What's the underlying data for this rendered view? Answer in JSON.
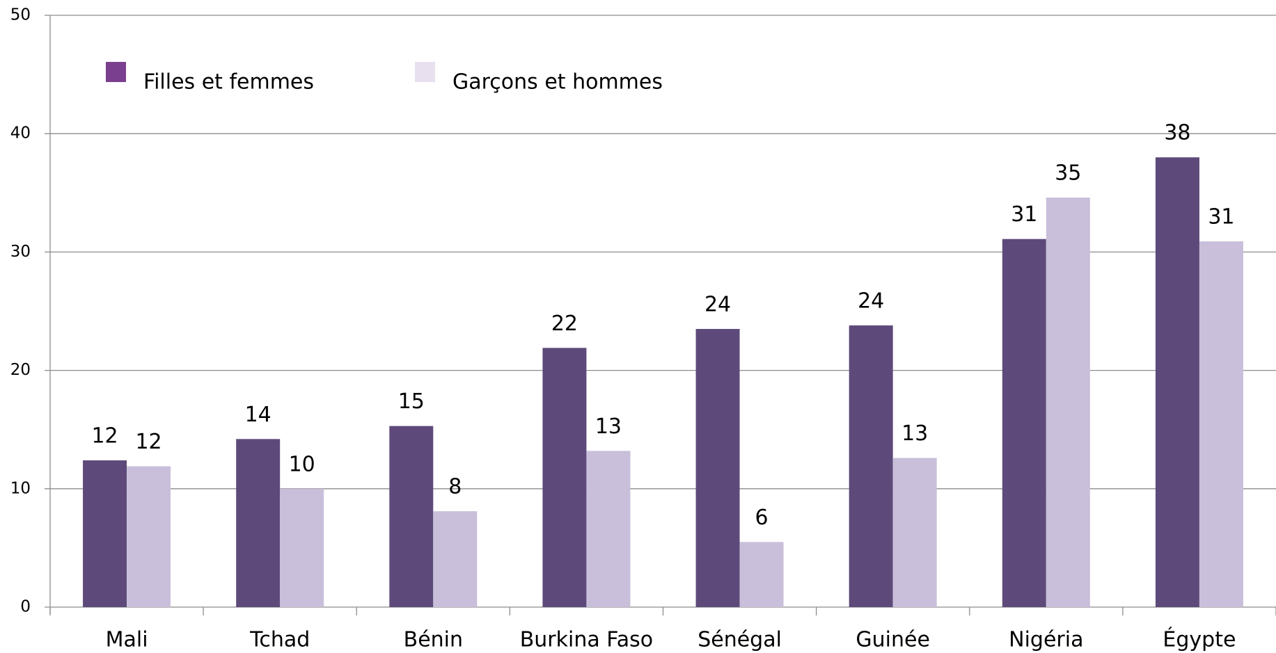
{
  "chart_data": {
    "type": "bar",
    "categories": [
      "Mali",
      "Tchad",
      "Bénin",
      "Burkina Faso",
      "Sénégal",
      "Guinée",
      "Nigéria",
      "Égypte"
    ],
    "series": [
      {
        "name": "Filles et femmes",
        "color": "#5e4a7a",
        "values": [
          12.4,
          14.2,
          15.3,
          21.9,
          23.5,
          23.8,
          31.1,
          38
        ],
        "value_labels": [
          "12",
          "14",
          "15",
          "22",
          "24",
          "24",
          "31",
          "38"
        ]
      },
      {
        "name": "Garçons et hommes",
        "color": "#c9bfda",
        "values": [
          11.9,
          10,
          8.1,
          13.2,
          5.5,
          12.6,
          34.6,
          30.9
        ],
        "value_labels": [
          "12",
          "10",
          "8",
          "13",
          "6",
          "13",
          "35",
          "31"
        ]
      }
    ],
    "ylim": [
      0,
      50
    ],
    "yticks": [
      0,
      10,
      20,
      30,
      40,
      50
    ],
    "grid": true,
    "legend": "top-left"
  }
}
